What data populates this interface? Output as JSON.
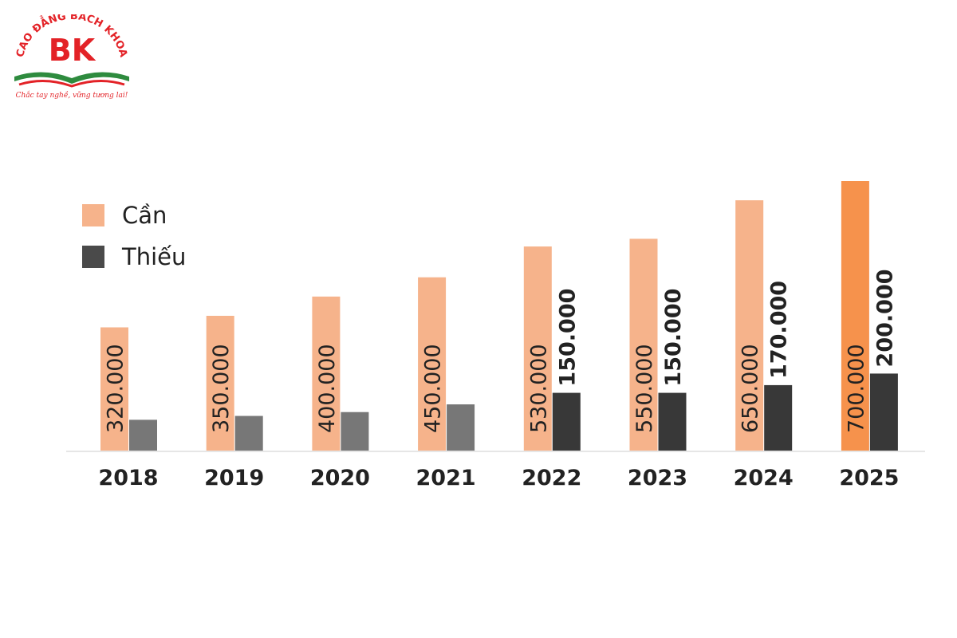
{
  "logo": {
    "arc_text": "CAO ĐẲNG BÁCH KHOA",
    "monogram": "BK",
    "slogan": "Chắc tay nghề, vững tương lai!"
  },
  "colors": {
    "logo_red": "#e32227",
    "logo_green": "#2e8b3e",
    "series1": "#f6b38b",
    "series2": "#4a4a4a",
    "axis": "#dddddd",
    "label_dark": "#222222"
  },
  "chart_data": {
    "type": "bar",
    "categories": [
      "2018",
      "2019",
      "2020",
      "2021",
      "2022",
      "2023",
      "2024",
      "2025"
    ],
    "series": [
      {
        "name": "Cần",
        "values": [
          320000,
          350000,
          400000,
          450000,
          530000,
          550000,
          650000,
          700000
        ],
        "labels": [
          "320.000",
          "350.000",
          "400.000",
          "450.000",
          "530.000",
          "550.000",
          "650.000",
          "700.000"
        ]
      },
      {
        "name": "Thiếu",
        "values": [
          80000,
          90000,
          100000,
          120000,
          150000,
          150000,
          170000,
          200000
        ],
        "labels": [
          "",
          "",
          "",
          "",
          "150.000",
          "150.000",
          "170.000",
          "200.000"
        ]
      }
    ],
    "ylim": [
      0,
      700000
    ],
    "grid": false,
    "legend_position": "top-left",
    "title": "",
    "xlabel": "",
    "ylabel": ""
  }
}
